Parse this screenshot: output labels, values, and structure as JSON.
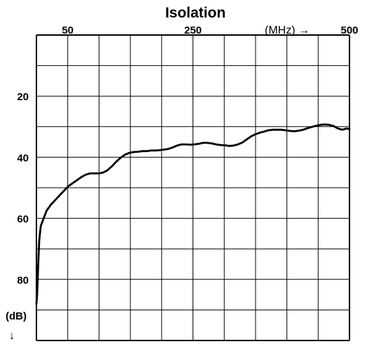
{
  "chart_data": {
    "type": "line",
    "title": "Isolation",
    "x_unit_label": "(MHz) →",
    "y_unit_label": "(dB)",
    "y_direction_symbol": "↓",
    "x_tick_labels": [
      "50",
      "250",
      "500"
    ],
    "y_tick_labels": [
      "20",
      "40",
      "60",
      "80"
    ],
    "grid": true,
    "line_color": "#000000",
    "series": [
      {
        "values": [
          [
            0.0,
            88.0
          ],
          [
            0.5,
            85.0
          ],
          [
            1.0,
            78.0
          ],
          [
            1.5,
            72.0
          ],
          [
            2.0,
            67.0
          ],
          [
            3.0,
            62.5
          ],
          [
            5.0,
            60.0
          ],
          [
            7.0,
            57.5
          ],
          [
            10.0,
            55.5
          ],
          [
            13.0,
            54.0
          ],
          [
            16.0,
            52.5
          ],
          [
            19.0,
            51.0
          ],
          [
            22.0,
            49.5
          ],
          [
            25.0,
            48.5
          ],
          [
            28.0,
            47.5
          ],
          [
            31.0,
            46.5
          ],
          [
            34.0,
            45.7
          ],
          [
            37.0,
            45.3
          ],
          [
            40.0,
            45.3
          ],
          [
            43.0,
            45.3
          ],
          [
            46.0,
            45.0
          ],
          [
            49.0,
            44.3
          ],
          [
            52.0,
            43.0
          ],
          [
            55.0,
            41.5
          ],
          [
            58.0,
            40.2
          ],
          [
            61.0,
            39.2
          ],
          [
            64.0,
            38.6
          ],
          [
            67.0,
            38.3
          ],
          [
            70.0,
            38.2
          ],
          [
            73.0,
            38.0
          ],
          [
            76.0,
            38.0
          ],
          [
            79.0,
            37.8
          ],
          [
            82.0,
            37.8
          ],
          [
            85.0,
            37.7
          ],
          [
            88.0,
            37.5
          ],
          [
            91.0,
            37.3
          ],
          [
            94.0,
            36.8
          ],
          [
            97.0,
            36.2
          ],
          [
            100.0,
            35.8
          ],
          [
            103.0,
            35.8
          ],
          [
            106.0,
            35.9
          ],
          [
            109.0,
            35.8
          ],
          [
            112.0,
            35.6
          ],
          [
            115.0,
            35.3
          ],
          [
            118.0,
            35.3
          ],
          [
            121.0,
            35.5
          ],
          [
            124.0,
            35.8
          ],
          [
            127.0,
            36.0
          ],
          [
            130.0,
            36.1
          ],
          [
            133.0,
            36.3
          ],
          [
            136.0,
            36.2
          ],
          [
            139.0,
            35.8
          ],
          [
            142.0,
            35.2
          ],
          [
            145.0,
            34.2
          ],
          [
            148.0,
            33.2
          ],
          [
            151.0,
            32.5
          ],
          [
            154.0,
            32.0
          ],
          [
            157.0,
            31.6
          ],
          [
            160.0,
            31.2
          ],
          [
            163.0,
            31.0
          ],
          [
            166.0,
            31.0
          ],
          [
            169.0,
            31.0
          ],
          [
            172.0,
            31.2
          ],
          [
            175.0,
            31.4
          ],
          [
            178.0,
            31.5
          ],
          [
            181.0,
            31.3
          ],
          [
            184.0,
            31.0
          ],
          [
            187.0,
            30.5
          ],
          [
            190.0,
            30.1
          ],
          [
            193.0,
            29.7
          ],
          [
            196.0,
            29.4
          ],
          [
            199.0,
            29.3
          ],
          [
            202.0,
            29.4
          ],
          [
            205.0,
            29.8
          ],
          [
            208.0,
            30.6
          ],
          [
            211.0,
            31.0
          ],
          [
            214.0,
            30.6
          ],
          [
            216.0,
            30.8
          ]
        ]
      }
    ]
  }
}
